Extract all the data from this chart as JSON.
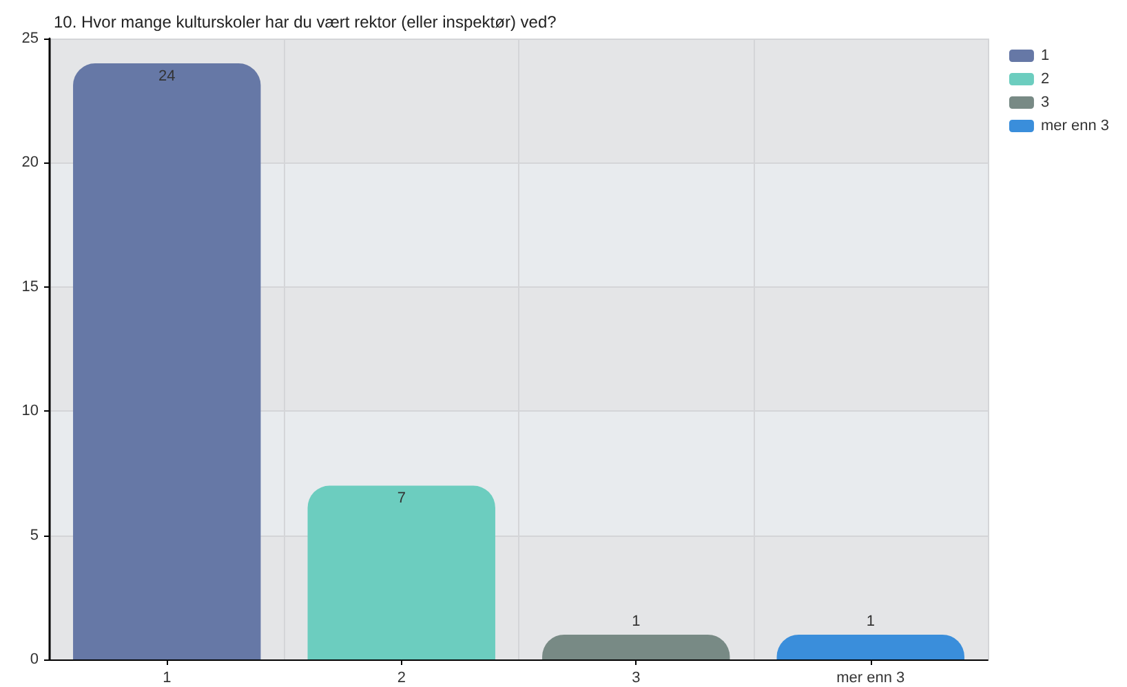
{
  "chart_data": {
    "type": "bar",
    "title": "10. Hvor mange kulturskoler har du vært rektor (eller inspektør) ved?",
    "categories": [
      "1",
      "2",
      "3",
      "mer enn 3"
    ],
    "series": [
      {
        "name": "1",
        "color": "#6678a6",
        "values": [
          24,
          null,
          null,
          null
        ]
      },
      {
        "name": "2",
        "color": "#6ccdbf",
        "values": [
          null,
          7,
          null,
          null
        ]
      },
      {
        "name": "3",
        "color": "#788a85",
        "values": [
          null,
          null,
          1,
          null
        ]
      },
      {
        "name": "mer enn 3",
        "color": "#3a8edb",
        "values": [
          null,
          null,
          null,
          1
        ]
      }
    ],
    "stacked": true,
    "ylim": [
      0,
      25
    ],
    "yticks": [
      0,
      5,
      10,
      15,
      20,
      25
    ],
    "grid": true,
    "legend": "top right",
    "data_labels": true
  }
}
